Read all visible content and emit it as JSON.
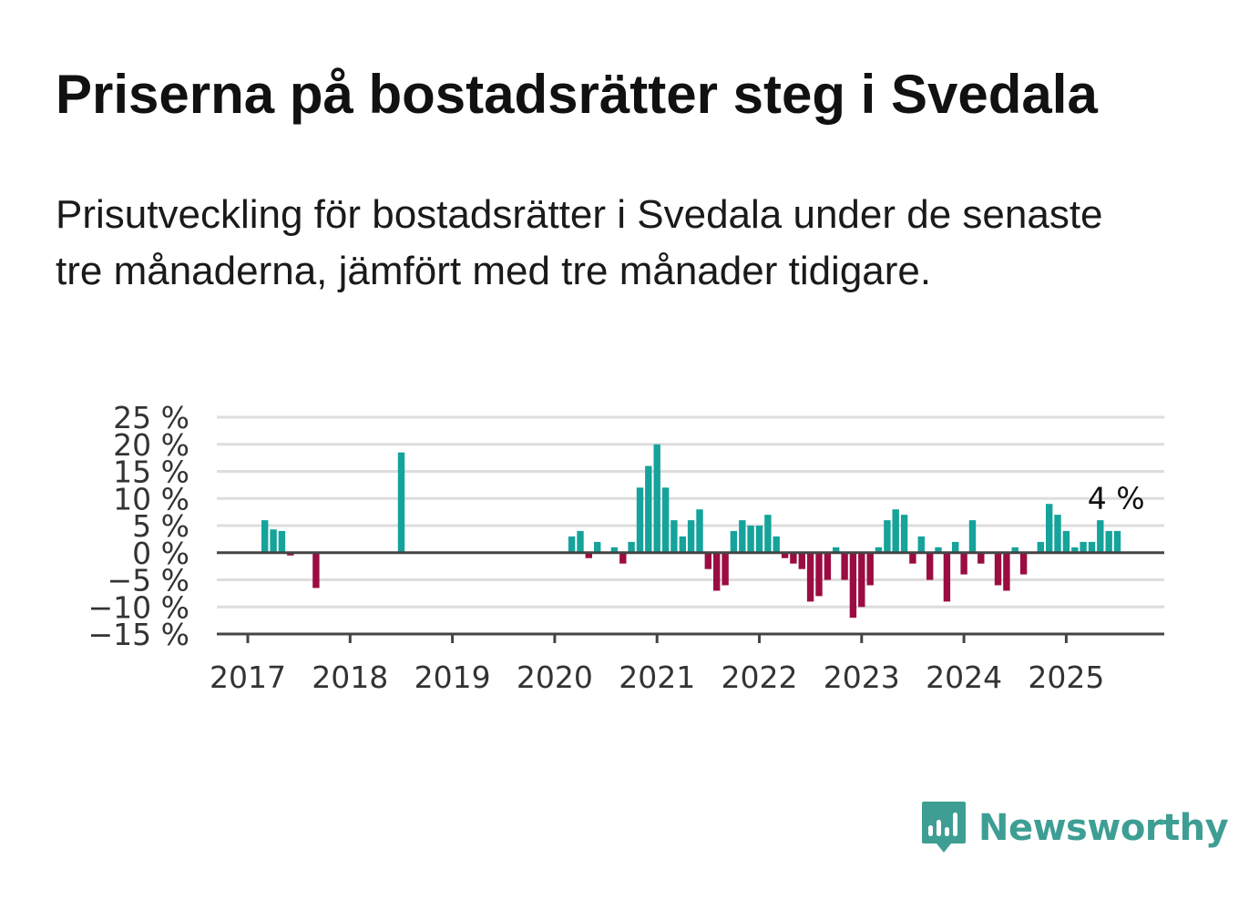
{
  "title": "Priserna på bostadsrätter steg i Svedala",
  "subtitle": "Prisutveckling för bostadsrätter i Svedala under de senaste tre månaderna, jämfört med tre månader tidigare.",
  "brand": {
    "name": "Newsworthy",
    "color": "#3e9e94",
    "icon": "bar-chart-speech-bubble-icon"
  },
  "colors": {
    "positive": "#15a39b",
    "negative": "#9b0c42",
    "grid": "#dddddd",
    "axis": "#444444"
  },
  "chart_data": {
    "type": "bar",
    "title": "",
    "xlabel": "",
    "ylabel": "",
    "ylim": [
      -15,
      25
    ],
    "y_ticks": [
      25,
      20,
      15,
      10,
      5,
      0,
      -5,
      -10,
      -15
    ],
    "y_tick_labels": [
      "25 %",
      "20 %",
      "15 %",
      "10 %",
      "5 %",
      "0 %",
      "−5 %",
      "−10 %",
      "−15 %"
    ],
    "x_ticks": [
      2017,
      2018,
      2019,
      2020,
      2021,
      2022,
      2023,
      2024,
      2025
    ],
    "x_tick_labels": [
      "2017",
      "2018",
      "2019",
      "2020",
      "2021",
      "2022",
      "2023",
      "2024",
      "2025"
    ],
    "grid": true,
    "annotation": {
      "text": "4 %",
      "date": "2025-07"
    },
    "series": [
      {
        "values": [
          {
            "date": "2017-03",
            "value": 6
          },
          {
            "date": "2017-04",
            "value": 4.3
          },
          {
            "date": "2017-05",
            "value": 4
          },
          {
            "date": "2017-06",
            "value": -0.5
          },
          {
            "date": "2017-09",
            "value": -6.5
          },
          {
            "date": "2018-07",
            "value": 18.5
          },
          {
            "date": "2020-03",
            "value": 3
          },
          {
            "date": "2020-04",
            "value": 4
          },
          {
            "date": "2020-05",
            "value": -1
          },
          {
            "date": "2020-06",
            "value": 2
          },
          {
            "date": "2020-08",
            "value": 1
          },
          {
            "date": "2020-09",
            "value": -2
          },
          {
            "date": "2020-10",
            "value": 2
          },
          {
            "date": "2020-11",
            "value": 12
          },
          {
            "date": "2020-12",
            "value": 16
          },
          {
            "date": "2021-01",
            "value": 20
          },
          {
            "date": "2021-02",
            "value": 12
          },
          {
            "date": "2021-03",
            "value": 6
          },
          {
            "date": "2021-04",
            "value": 3
          },
          {
            "date": "2021-05",
            "value": 6
          },
          {
            "date": "2021-06",
            "value": 8
          },
          {
            "date": "2021-07",
            "value": -3
          },
          {
            "date": "2021-08",
            "value": -7
          },
          {
            "date": "2021-09",
            "value": -6
          },
          {
            "date": "2021-10",
            "value": 4
          },
          {
            "date": "2021-11",
            "value": 6
          },
          {
            "date": "2021-12",
            "value": 5
          },
          {
            "date": "2022-01",
            "value": 5
          },
          {
            "date": "2022-02",
            "value": 7
          },
          {
            "date": "2022-03",
            "value": 3
          },
          {
            "date": "2022-04",
            "value": -1
          },
          {
            "date": "2022-05",
            "value": -2
          },
          {
            "date": "2022-06",
            "value": -3
          },
          {
            "date": "2022-07",
            "value": -9
          },
          {
            "date": "2022-08",
            "value": -8
          },
          {
            "date": "2022-09",
            "value": -5
          },
          {
            "date": "2022-10",
            "value": 1
          },
          {
            "date": "2022-11",
            "value": -5
          },
          {
            "date": "2022-12",
            "value": -12
          },
          {
            "date": "2023-01",
            "value": -10
          },
          {
            "date": "2023-02",
            "value": -6
          },
          {
            "date": "2023-03",
            "value": 1
          },
          {
            "date": "2023-04",
            "value": 6
          },
          {
            "date": "2023-05",
            "value": 8
          },
          {
            "date": "2023-06",
            "value": 7
          },
          {
            "date": "2023-07",
            "value": -2
          },
          {
            "date": "2023-08",
            "value": 3
          },
          {
            "date": "2023-09",
            "value": -5
          },
          {
            "date": "2023-10",
            "value": 1
          },
          {
            "date": "2023-11",
            "value": -9
          },
          {
            "date": "2023-12",
            "value": 2
          },
          {
            "date": "2024-01",
            "value": -4
          },
          {
            "date": "2024-02",
            "value": 6
          },
          {
            "date": "2024-03",
            "value": -2
          },
          {
            "date": "2024-05",
            "value": -6
          },
          {
            "date": "2024-06",
            "value": -7
          },
          {
            "date": "2024-07",
            "value": 1
          },
          {
            "date": "2024-08",
            "value": -4
          },
          {
            "date": "2024-10",
            "value": 2
          },
          {
            "date": "2024-11",
            "value": 9
          },
          {
            "date": "2024-12",
            "value": 7
          },
          {
            "date": "2025-01",
            "value": 4
          },
          {
            "date": "2025-02",
            "value": 1
          },
          {
            "date": "2025-03",
            "value": 2
          },
          {
            "date": "2025-04",
            "value": 2
          },
          {
            "date": "2025-05",
            "value": 6
          },
          {
            "date": "2025-06",
            "value": 4
          },
          {
            "date": "2025-07",
            "value": 4
          }
        ]
      }
    ]
  }
}
